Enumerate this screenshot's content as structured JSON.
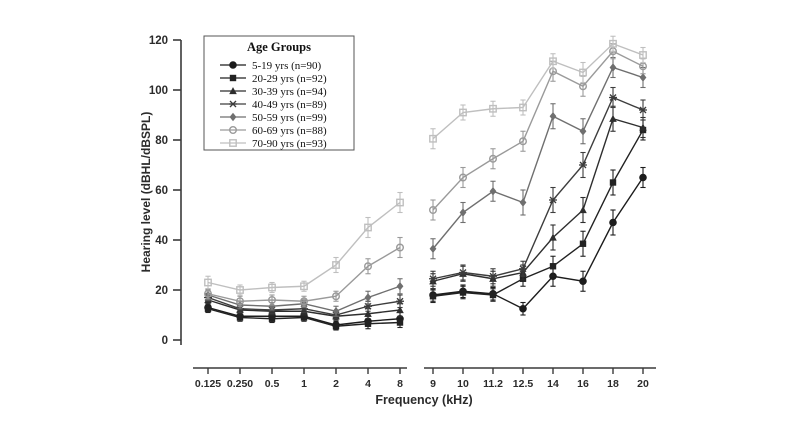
{
  "chart_data": {
    "type": "line",
    "title": "",
    "xlabel": "Frequency (kHz)",
    "ylabel": "Hearing level (dBHL/dBSPL)",
    "ylim": [
      0,
      120
    ],
    "y_ticks": [
      0,
      20,
      40,
      60,
      80,
      100,
      120
    ],
    "x_axis": {
      "broken": true,
      "left_labels": [
        "0.125",
        "0.250",
        "0.5",
        "1",
        "2",
        "4",
        "8"
      ],
      "right_labels": [
        "9",
        "10",
        "11.2",
        "12.5",
        "14",
        "16",
        "18",
        "20"
      ]
    },
    "legend": {
      "title": "Age Groups",
      "position": "upper-left"
    },
    "series": [
      {
        "name": "5-19 yrs (n=90)",
        "marker": "circle-filled",
        "color": "#1c1c1c",
        "left": [
          13,
          9.5,
          9.5,
          9.5,
          6,
          7.5,
          8.5
        ],
        "err_left": [
          1.5,
          1.5,
          1.5,
          1.5,
          1.5,
          2,
          2.5
        ],
        "right": [
          18,
          19.5,
          18.5,
          12.5,
          25.5,
          23.5,
          47,
          65
        ],
        "err_right": [
          2.5,
          2.5,
          2.5,
          2.5,
          4,
          4,
          5,
          4
        ]
      },
      {
        "name": "20-29 yrs (n=92)",
        "marker": "square-filled",
        "color": "#222222",
        "left": [
          12.5,
          9,
          8.5,
          9,
          5.5,
          6.5,
          7
        ],
        "err_left": [
          1.5,
          1.5,
          1.5,
          1.5,
          1.5,
          2,
          2
        ],
        "right": [
          17.5,
          19,
          18,
          24.5,
          29.5,
          38.5,
          63,
          84
        ],
        "err_right": [
          2.5,
          2.5,
          2.5,
          3,
          4,
          5,
          5,
          4
        ]
      },
      {
        "name": "30-39 yrs (n=94)",
        "marker": "triangle-filled",
        "color": "#2e2e2e",
        "left": [
          16,
          12,
          11.5,
          11.5,
          9.5,
          10.5,
          12
        ],
        "err_left": [
          1.5,
          1.5,
          1.5,
          1.5,
          1.5,
          2,
          2.5
        ],
        "right": [
          23.5,
          26.5,
          24.5,
          27,
          41,
          52,
          88.5,
          85
        ],
        "err_right": [
          3,
          3,
          3,
          3,
          5,
          5,
          5,
          4
        ]
      },
      {
        "name": "40-49 yrs (n=89)",
        "marker": "star",
        "color": "#3d3d3d",
        "left": [
          17,
          12.5,
          12,
          12.5,
          10,
          13.5,
          15.5
        ],
        "err_left": [
          1.5,
          1.5,
          1.5,
          1.5,
          1.5,
          2,
          2.5
        ],
        "right": [
          24.5,
          27,
          25.5,
          28.5,
          56,
          70,
          97,
          92
        ],
        "err_right": [
          3,
          3,
          3,
          3,
          5,
          5,
          4,
          4
        ]
      },
      {
        "name": "50-59 yrs (n=99)",
        "marker": "diamond-filled",
        "color": "#6f6f6f",
        "left": [
          18,
          14,
          13.5,
          14.5,
          11.5,
          17,
          21.5
        ],
        "err_left": [
          2,
          1.5,
          1.5,
          1.5,
          2,
          2.5,
          3
        ],
        "right": [
          36.5,
          51,
          59.5,
          55,
          89.5,
          83.5,
          109,
          105
        ],
        "err_right": [
          4,
          4,
          4,
          5,
          5,
          5,
          4,
          4
        ]
      },
      {
        "name": "60-69 yrs (n=88)",
        "marker": "circle-open",
        "color": "#9a9a9a",
        "left": [
          18.5,
          15.5,
          16,
          15.5,
          17.5,
          29.5,
          37
        ],
        "err_left": [
          2,
          2,
          2,
          2,
          2,
          3,
          4
        ],
        "right": [
          52,
          65,
          72.5,
          79.5,
          107.5,
          101.5,
          115.5,
          109.5
        ],
        "err_right": [
          4,
          4,
          4,
          4,
          4,
          4,
          3,
          3
        ]
      },
      {
        "name": "70-90 yrs (n=93)",
        "marker": "square-open",
        "color": "#bfbfbf",
        "left": [
          23,
          20,
          21,
          21.5,
          30,
          45,
          55
        ],
        "err_left": [
          2.5,
          2,
          2,
          2,
          3,
          4,
          4
        ],
        "right": [
          80.5,
          91,
          92.5,
          93,
          111.5,
          107,
          118.5,
          114
        ],
        "err_right": [
          4,
          3,
          3,
          3,
          3,
          4,
          3,
          3
        ]
      }
    ]
  }
}
